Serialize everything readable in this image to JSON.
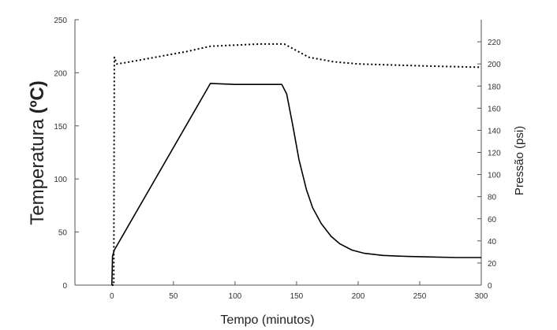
{
  "chart_data": {
    "type": "line",
    "xlabel": "Tempo (minutos)",
    "ylabel_left_prefix": "Temperatura ",
    "ylabel_left_unit": "(ºC)",
    "ylabel_right": "Pressão (psi)",
    "xlim": [
      -30,
      300
    ],
    "ylim_left": [
      0,
      250
    ],
    "ylim_right": [
      0,
      240
    ],
    "x_ticks": [
      0,
      50,
      100,
      150,
      200,
      250,
      300
    ],
    "y_left_ticks": [
      0,
      50,
      100,
      150,
      200,
      250
    ],
    "y_right_ticks": [
      0,
      20,
      40,
      60,
      80,
      100,
      120,
      140,
      160,
      180,
      200,
      220
    ],
    "grid": false,
    "series": [
      {
        "style": "solid",
        "axis": "left",
        "color": "#000000",
        "x": [
          0,
          0.5,
          2,
          80,
          100,
          120,
          138,
          142,
          147,
          152,
          158,
          163,
          170,
          178,
          185,
          195,
          205,
          220,
          240,
          260,
          280,
          300
        ],
        "y": [
          0,
          27,
          33,
          190,
          189,
          189,
          189,
          180,
          150,
          118,
          90,
          73,
          58,
          46,
          39,
          33,
          30,
          28,
          27,
          26.5,
          26,
          26
        ]
      },
      {
        "style": "dotted",
        "axis": "right",
        "color": "#000000",
        "x": [
          0,
          1.5,
          2,
          4,
          10,
          25,
          45,
          60,
          80,
          100,
          120,
          140,
          150,
          160,
          180,
          200,
          230,
          260,
          300
        ],
        "y": [
          0,
          0,
          206,
          200,
          201,
          204,
          208,
          211,
          216,
          217,
          218,
          218,
          212,
          206,
          202,
          200,
          199,
          198,
          197
        ]
      }
    ]
  }
}
